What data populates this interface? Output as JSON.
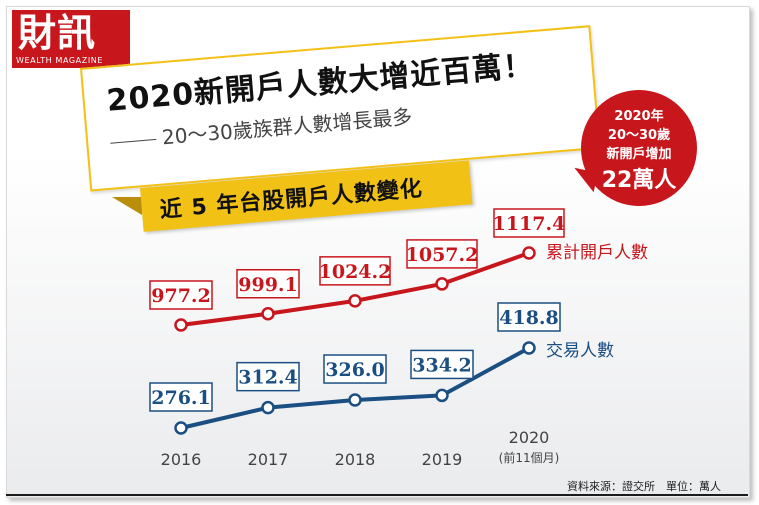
{
  "logo": {
    "name": "財訊",
    "sub": "WEALTH MAGAZINE"
  },
  "headline": "2020新開戶人數大增近百萬！",
  "subheadline": "20～30歲族群人數增長最多",
  "callout": {
    "line1": "2020年",
    "line2": "20～30歲",
    "line3": "新開戶增加",
    "line4": "22萬人"
  },
  "source": "資料來源：證交所　單位：萬人",
  "colors": {
    "red": "#c8161d",
    "blue": "#1b4f82",
    "yellow": "#f2c116"
  },
  "chart_data": {
    "type": "line",
    "title": "近 5 年台股開戶人數變化",
    "categories": [
      "2016",
      "2017",
      "2018",
      "2019",
      "2020"
    ],
    "category_notes": [
      "",
      "",
      "",
      "",
      "(前11個月)"
    ],
    "unit": "萬人",
    "series": [
      {
        "name": "累計開戶人數",
        "color": "#c8161d",
        "values": [
          977.2,
          999.1,
          1024.2,
          1057.2,
          1117.4
        ],
        "labels": [
          "977.2",
          "999.1",
          "1024.2",
          "1057.2",
          "1117.4"
        ]
      },
      {
        "name": "交易人數",
        "color": "#1b4f82",
        "values": [
          276.1,
          312.4,
          326.0,
          334.2,
          418.8
        ],
        "labels": [
          "276.1",
          "312.4",
          "326.0",
          "334.2",
          "418.8"
        ]
      }
    ]
  }
}
